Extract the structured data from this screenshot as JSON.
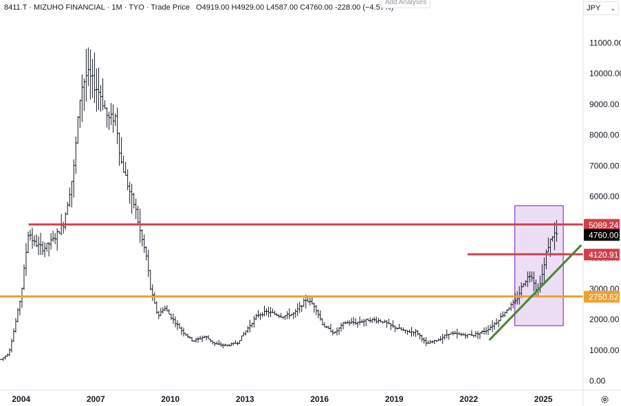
{
  "header": {
    "symbol": "8411.T",
    "name": "MIZUHO FINANCIAL",
    "interval": "1M",
    "exchange": "TYO",
    "price_type": "Trade Price",
    "open": "O4919.00",
    "high": "H4929.00",
    "low": "L4587.00",
    "close": "C4760.00",
    "change": "-228.00 (−4.57%)",
    "sep": "·"
  },
  "toolbar": {
    "add_analyses": "Add Analyses",
    "currency": "JPY"
  },
  "icons": {
    "settings": "gear-icon",
    "dropdown": "chevron-down-icon"
  },
  "colors": {
    "bars": "#131722",
    "resistance": "#d0404a",
    "support": "#f0a030",
    "trendline": "#4a8a3a",
    "highlight_fill": "#e6d3f2",
    "highlight_stroke": "#9c3fd0",
    "last_price_bg": "#000000"
  },
  "chart_data": {
    "type": "ohlc-bar",
    "interval": "1M",
    "y_axis": {
      "ticks": [
        "11000.00",
        "10000.00",
        "9000.00",
        "8000.00",
        "7000.00",
        "6000.00",
        "5000.00",
        "4000.00",
        "3000.00",
        "2000.00",
        "1000.00",
        "0.00"
      ],
      "ylim": [
        -300,
        11900
      ]
    },
    "x_axis": {
      "ticks": [
        "2004",
        "2007",
        "2010",
        "2013",
        "2016",
        "2019",
        "2022",
        "2025"
      ],
      "xlim": [
        2003.15,
        2026.6
      ]
    },
    "grid": false,
    "price_labels": [
      {
        "value": 5089.24,
        "text": "5089.24",
        "kind": "resistance"
      },
      {
        "value": 4760.0,
        "text": "4760.00",
        "kind": "last"
      },
      {
        "value": 4120.91,
        "text": "4120.91",
        "kind": "resistance"
      },
      {
        "value": 2750.62,
        "text": "2750.62",
        "kind": "support"
      }
    ],
    "drawings": {
      "hlines": [
        {
          "y": 5089.24,
          "x_start": 2004.3,
          "color": "resistance"
        },
        {
          "y": 4120.91,
          "x_start": 2021.95,
          "color": "resistance"
        },
        {
          "y": 2750.62,
          "x_start": 2003.15,
          "color": "support"
        }
      ],
      "trendline": {
        "from": [
          2022.85,
          1350
        ],
        "to": [
          2026.5,
          4400
        ]
      },
      "rectangle": {
        "x": [
          2023.85,
          2025.8
        ],
        "y": [
          1800,
          5700
        ]
      }
    },
    "anchors": [
      [
        2003.2,
        700
      ],
      [
        2003.5,
        900
      ],
      [
        2003.75,
        1800
      ],
      [
        2004.0,
        2800
      ],
      [
        2004.3,
        4900
      ],
      [
        2004.5,
        4500
      ],
      [
        2004.9,
        4300
      ],
      [
        2005.3,
        4600
      ],
      [
        2005.7,
        5100
      ],
      [
        2006.1,
        6800
      ],
      [
        2006.4,
        9500
      ],
      [
        2006.65,
        10000
      ],
      [
        2006.9,
        9700
      ],
      [
        2007.2,
        9300
      ],
      [
        2007.5,
        8500
      ],
      [
        2007.8,
        8600
      ],
      [
        2008.0,
        7200
      ],
      [
        2008.35,
        6200
      ],
      [
        2008.6,
        5600
      ],
      [
        2008.8,
        4800
      ],
      [
        2009.05,
        4000
      ],
      [
        2009.2,
        3000
      ],
      [
        2009.5,
        2100
      ],
      [
        2009.75,
        2400
      ],
      [
        2010.1,
        2000
      ],
      [
        2010.5,
        1600
      ],
      [
        2010.9,
        1300
      ],
      [
        2011.4,
        1450
      ],
      [
        2011.8,
        1200
      ],
      [
        2012.3,
        1150
      ],
      [
        2012.7,
        1250
      ],
      [
        2013.1,
        1700
      ],
      [
        2013.5,
        2150
      ],
      [
        2013.9,
        2250
      ],
      [
        2014.5,
        2100
      ],
      [
        2015.0,
        2200
      ],
      [
        2015.45,
        2650
      ],
      [
        2015.8,
        2450
      ],
      [
        2016.15,
        1800
      ],
      [
        2016.6,
        1550
      ],
      [
        2017.0,
        1900
      ],
      [
        2017.5,
        1900
      ],
      [
        2018.0,
        2000
      ],
      [
        2018.5,
        1950
      ],
      [
        2019.0,
        1750
      ],
      [
        2019.5,
        1600
      ],
      [
        2019.9,
        1600
      ],
      [
        2020.3,
        1200
      ],
      [
        2020.8,
        1350
      ],
      [
        2021.2,
        1550
      ],
      [
        2021.7,
        1500
      ],
      [
        2022.2,
        1500
      ],
      [
        2022.7,
        1650
      ],
      [
        2023.1,
        1900
      ],
      [
        2023.5,
        2300
      ],
      [
        2023.9,
        2600
      ],
      [
        2024.2,
        3200
      ],
      [
        2024.5,
        3500
      ],
      [
        2024.75,
        2900
      ],
      [
        2025.0,
        3600
      ],
      [
        2025.15,
        4300
      ],
      [
        2025.4,
        4800
      ],
      [
        2025.55,
        4760
      ]
    ]
  }
}
